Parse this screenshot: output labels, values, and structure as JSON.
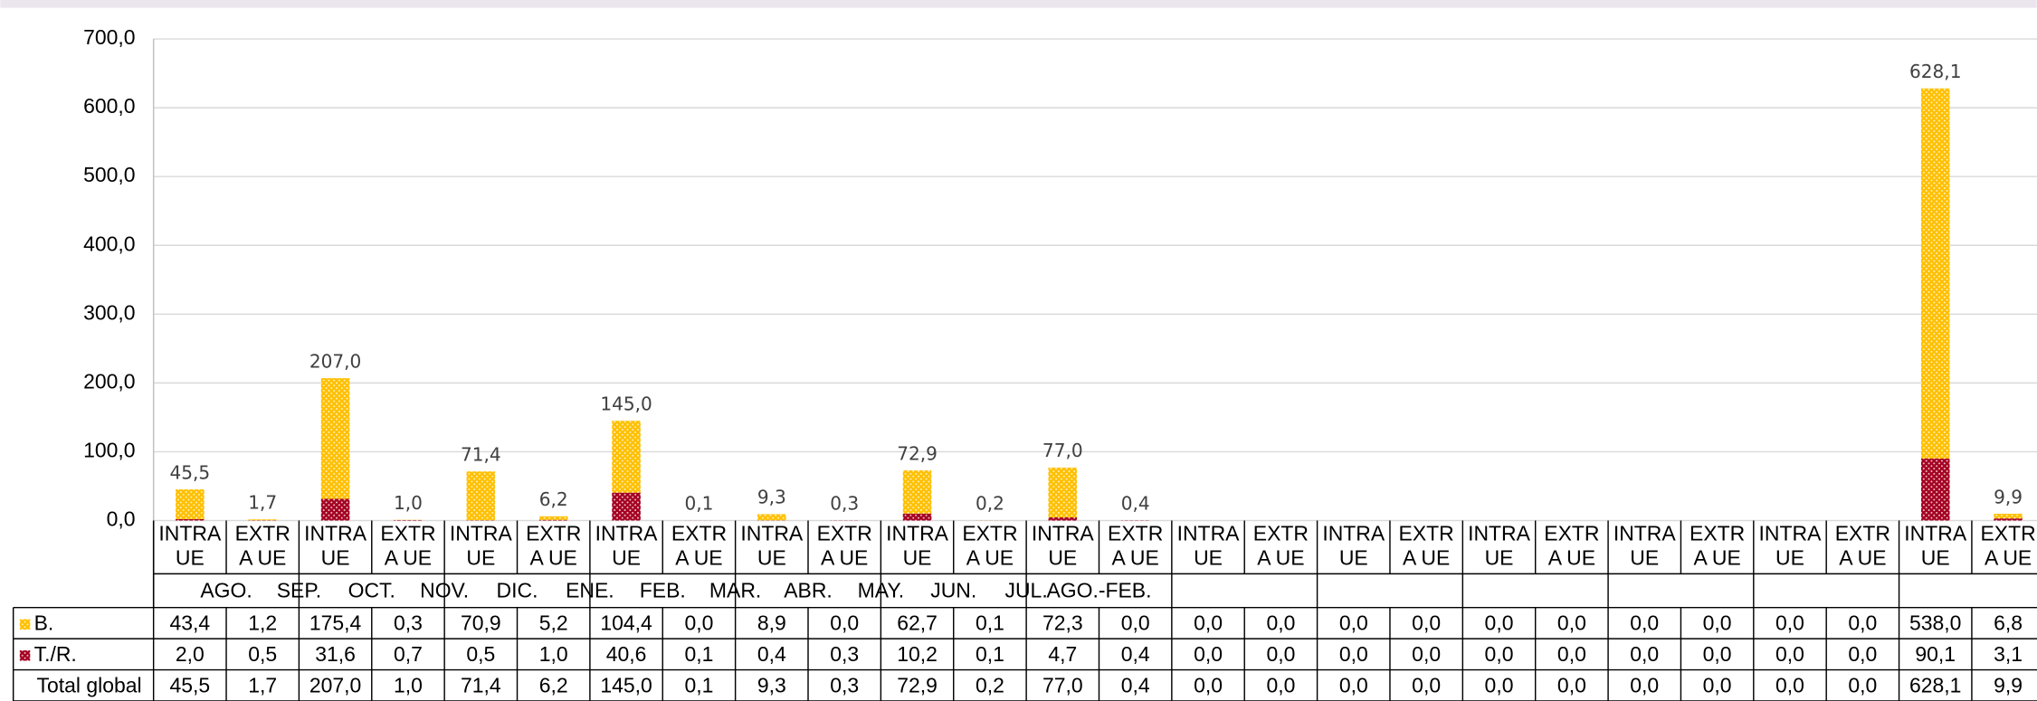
{
  "chart_data": {
    "type": "stacked_bar",
    "groups": [
      "AGO.",
      "SEP.",
      "OCT.",
      "NOV.",
      "DIC.",
      "ENE.",
      "FEB.",
      "MAR.",
      "ABR.",
      "MAY.",
      "JUN.",
      "JUL.",
      "AGO.-FEB."
    ],
    "categories": [
      [
        "INTRA",
        "UE"
      ],
      [
        "EXTR",
        "A UE"
      ],
      [
        "INTRA",
        "UE"
      ],
      [
        "EXTR",
        "A UE"
      ],
      [
        "INTRA",
        "UE"
      ],
      [
        "EXTR",
        "A UE"
      ],
      [
        "INTRA",
        "UE"
      ],
      [
        "EXTR",
        "A UE"
      ],
      [
        "INTRA",
        "UE"
      ],
      [
        "EXTR",
        "A UE"
      ],
      [
        "INTRA",
        "UE"
      ],
      [
        "EXTR",
        "A UE"
      ],
      [
        "INTRA",
        "UE"
      ],
      [
        "EXTR",
        "A UE"
      ],
      [
        "INTRA",
        "UE"
      ],
      [
        "EXTR",
        "A UE"
      ],
      [
        "INTRA",
        "UE"
      ],
      [
        "EXTR",
        "A UE"
      ],
      [
        "INTRA",
        "UE"
      ],
      [
        "EXTR",
        "A UE"
      ],
      [
        "INTRA",
        "UE"
      ],
      [
        "EXTR",
        "A UE"
      ],
      [
        "INTRA",
        "UE"
      ],
      [
        "EXTR",
        "A UE"
      ],
      [
        "INTRA",
        "UE"
      ],
      [
        "EXTR",
        "A UE"
      ]
    ],
    "series": [
      {
        "name": "T./R.",
        "color": "#a50021",
        "values": [
          2.0,
          0.5,
          31.6,
          0.7,
          0.5,
          1.0,
          40.6,
          0.1,
          0.4,
          0.3,
          10.2,
          0.1,
          4.7,
          0.4,
          0,
          0,
          0,
          0,
          0,
          0,
          0,
          0,
          0,
          0,
          90.1,
          3.1
        ],
        "value_labels": [
          "2,0",
          "0,5",
          "31,6",
          "0,7",
          "0,5",
          "1,0",
          "40,6",
          "0,1",
          "0,4",
          "0,3",
          "10,2",
          "0,1",
          "4,7",
          "0,4",
          "0,0",
          "0,0",
          "0,0",
          "0,0",
          "0,0",
          "0,0",
          "0,0",
          "0,0",
          "0,0",
          "0,0",
          "90,1",
          "3,1"
        ]
      },
      {
        "name": "B.",
        "color": "#ffc000",
        "values": [
          43.4,
          1.2,
          175.4,
          0.3,
          70.9,
          5.2,
          104.4,
          0.0,
          8.9,
          0.0,
          62.7,
          0.1,
          72.3,
          0.0,
          0,
          0,
          0,
          0,
          0,
          0,
          0,
          0,
          0,
          0,
          538.0,
          6.8
        ],
        "value_labels": [
          "43,4",
          "1,2",
          "175,4",
          "0,3",
          "70,9",
          "5,2",
          "104,4",
          "0,0",
          "8,9",
          "0,0",
          "62,7",
          "0,1",
          "72,3",
          "0,0",
          "0,0",
          "0,0",
          "0,0",
          "0,0",
          "0,0",
          "0,0",
          "0,0",
          "0,0",
          "0,0",
          "0,0",
          "538,0",
          "6,8"
        ]
      }
    ],
    "totals": {
      "name": "Total global",
      "values": [
        45.5,
        1.7,
        207.0,
        1.0,
        71.4,
        6.2,
        145.0,
        0.1,
        9.3,
        0.3,
        72.9,
        0.2,
        77.0,
        0.4,
        0,
        0,
        0,
        0,
        0,
        0,
        0,
        0,
        0,
        0,
        628.1,
        9.9
      ],
      "value_labels": [
        "45,5",
        "1,7",
        "207,0",
        "1,0",
        "71,4",
        "6,2",
        "145,0",
        "0,1",
        "9,3",
        "0,3",
        "72,9",
        "0,2",
        "77,0",
        "0,4",
        "0,0",
        "0,0",
        "0,0",
        "0,0",
        "0,0",
        "0,0",
        "0,0",
        "0,0",
        "0,0",
        "0,0",
        "628,1",
        "9,9"
      ]
    },
    "ylim": [
      0,
      700
    ],
    "yticks": [
      {
        "value": 0,
        "label": "0,0"
      },
      {
        "value": 100,
        "label": "100,0"
      },
      {
        "value": 200,
        "label": "200,0"
      },
      {
        "value": 300,
        "label": "300,0"
      },
      {
        "value": 400,
        "label": "400,0"
      },
      {
        "value": 500,
        "label": "500,0"
      },
      {
        "value": 600,
        "label": "600,0"
      },
      {
        "value": 700,
        "label": "700,0"
      }
    ],
    "grid": true
  }
}
